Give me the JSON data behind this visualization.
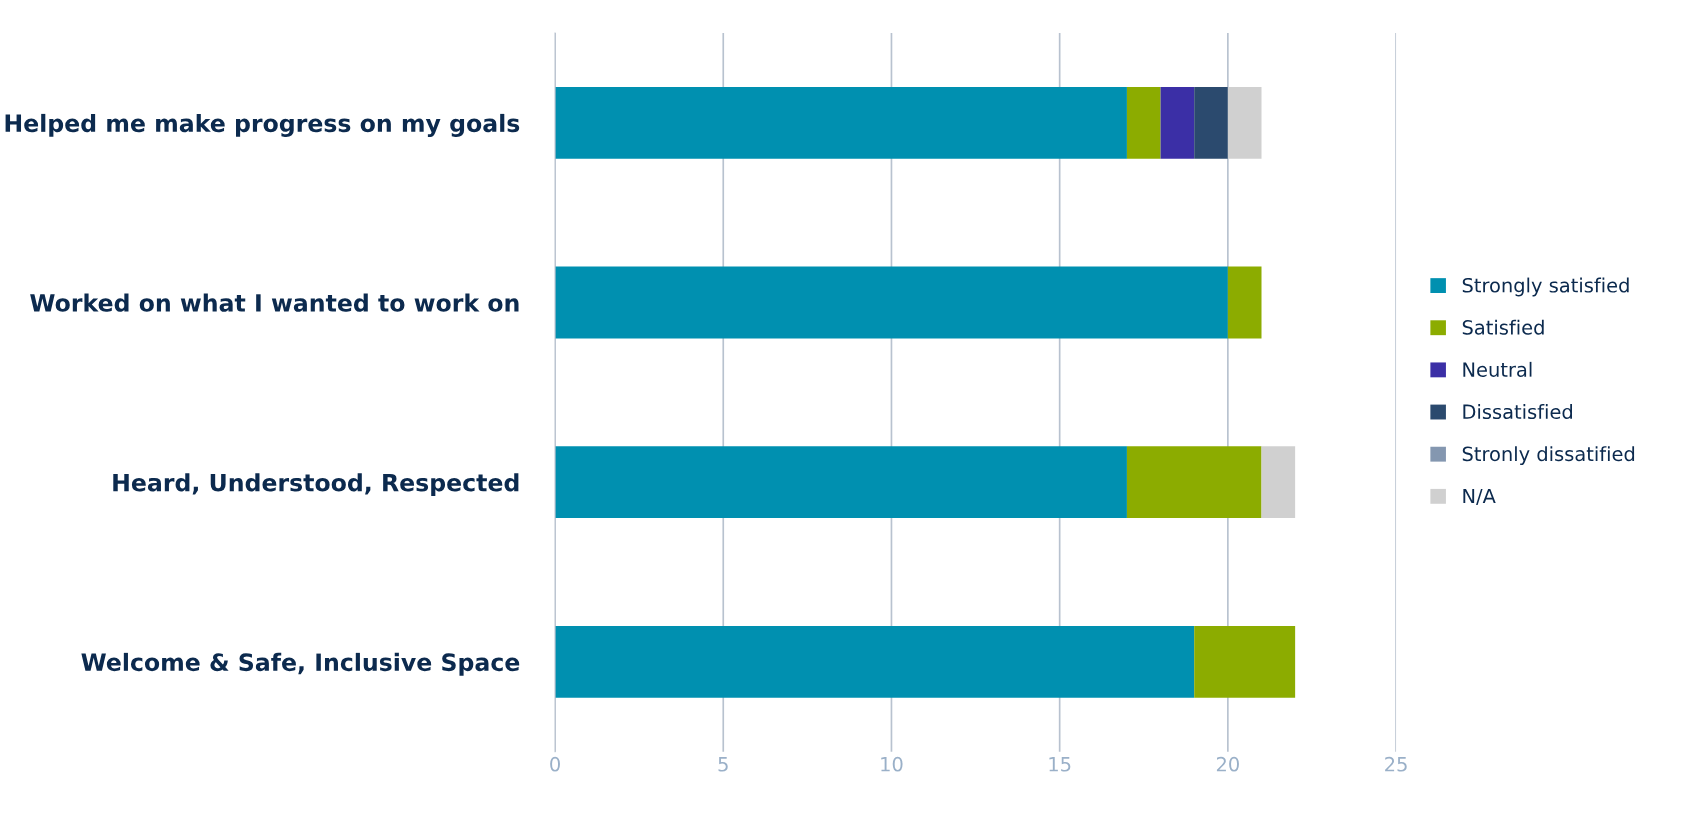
{
  "chart_data": {
    "type": "bar",
    "orientation": "horizontal",
    "stacked": true,
    "categories": [
      "Helped me make progress on my goals",
      "Worked on what I wanted to work on",
      "Heard, Understood, Respected",
      "Welcome & Safe, Inclusive Space"
    ],
    "series": [
      {
        "name": "Strongly satisfied",
        "color": "#0090b0",
        "values": [
          17,
          20,
          17,
          19
        ]
      },
      {
        "name": "Satisfied",
        "color": "#8cac00",
        "values": [
          1,
          1,
          4,
          3
        ]
      },
      {
        "name": "Neutral",
        "color": "#3b2fa6",
        "values": [
          1,
          0,
          0,
          0
        ]
      },
      {
        "name": "Dissatisfied",
        "color": "#2b4a6e",
        "values": [
          1,
          0,
          0,
          0
        ]
      },
      {
        "name": "Stronly dissatified",
        "color": "#8497b0",
        "values": [
          0,
          0,
          0,
          0
        ]
      },
      {
        "name": "N/A",
        "color": "#d0d0d0",
        "values": [
          1,
          0,
          1,
          0
        ]
      }
    ],
    "xlim": [
      0,
      25
    ],
    "xticks": [
      0,
      5,
      10,
      15,
      20,
      25
    ],
    "grid": "x",
    "legend": "right"
  }
}
